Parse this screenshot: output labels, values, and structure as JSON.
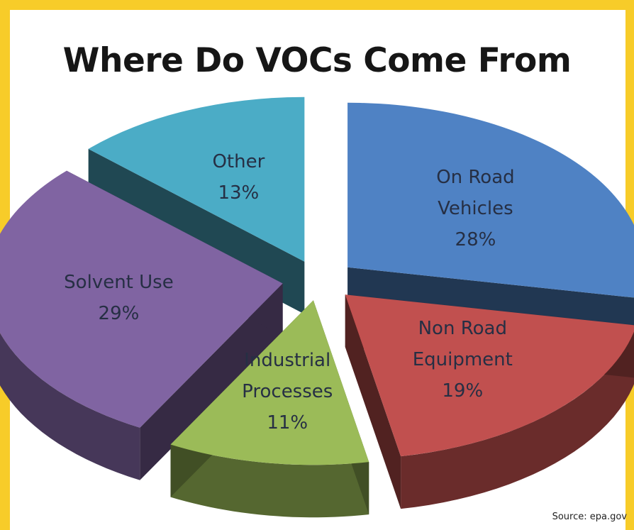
{
  "chart_data": {
    "type": "pie",
    "title": "Where Do VOCs Come From",
    "source": "Source: epa.gov",
    "slices": [
      {
        "label": "On Road\nVehicles\n28%",
        "value": 28,
        "color": "#4f82c4"
      },
      {
        "label": "Non Road\nEquipment\n19%",
        "value": 19,
        "color": "#c1504f"
      },
      {
        "label": "Industrial\nProcesses\n11%",
        "value": 11,
        "color": "#9bbb58"
      },
      {
        "label": "Solvent Use\n29%",
        "value": 29,
        "color": "#8064a2"
      },
      {
        "label": "Other\n13%",
        "value": 13,
        "color": "#4bacc6"
      }
    ]
  }
}
